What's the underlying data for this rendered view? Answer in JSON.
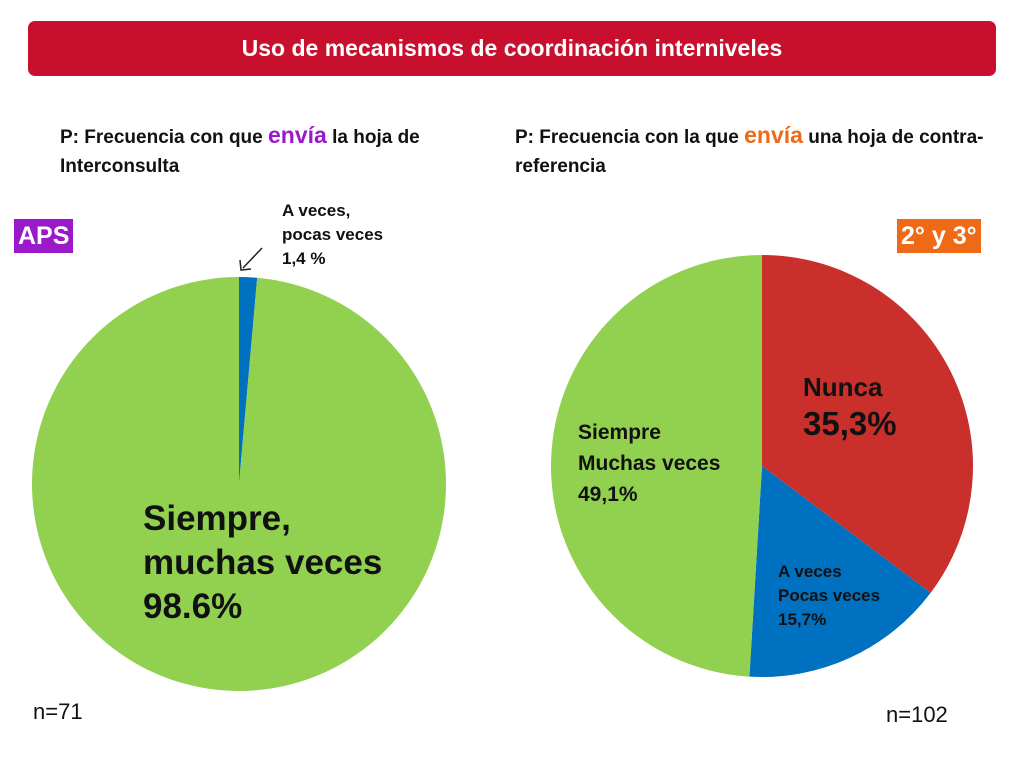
{
  "banner": {
    "title": "Uso de mecanismos de coordinación interniveles"
  },
  "left": {
    "q_prefix": "P: Frecuencia con que ",
    "q_verb": "envía",
    "q_suffix": " la hoja de Interconsulta",
    "tag": "APS",
    "n": "n=71"
  },
  "right": {
    "q_prefix": "P: Frecuencia con la que ",
    "q_verb": "envía",
    "q_suffix": " una hoja de contra-referencia",
    "tag": "2° y 3°",
    "n": "n=102"
  },
  "colors": {
    "banner": "#c8102e",
    "aps_tag": "#9a19c9",
    "tag_2y3": "#ef6a16",
    "verb_left": "#9a19c9",
    "verb_right": "#ef6a16",
    "green": "#92d050",
    "blue": "#0070c0",
    "red": "#c9302c"
  },
  "chart_data": [
    {
      "type": "pie",
      "title": "",
      "slices": [
        {
          "label": "A veces, pocas veces 1,4 %",
          "value": 1.4,
          "color": "#0070c0"
        },
        {
          "label": "Siempre, muchas veces 98.6%",
          "value": 98.6,
          "color": "#92d050"
        }
      ]
    },
    {
      "type": "pie",
      "title": "",
      "slices": [
        {
          "label": "Nunca 35,3%",
          "value": 35.3,
          "color": "#c9302c"
        },
        {
          "label": "A veces Pocas veces 15,7%",
          "value": 15.7,
          "color": "#0070c0"
        },
        {
          "label": "Siempre Muchas veces 49,1%",
          "value": 49.1,
          "color": "#92d050"
        }
      ]
    }
  ],
  "labels": {
    "left_small": [
      "A veces,",
      "pocas veces",
      "1,4 %"
    ],
    "left_big": [
      "Siempre,",
      "muchas veces",
      "98.6%"
    ],
    "right_nunca": [
      "Nunca",
      "35,3%"
    ],
    "right_siempre": [
      "Siempre",
      "Muchas veces",
      "49,1%"
    ],
    "right_aveces": [
      "A veces",
      "Pocas veces",
      "15,7%"
    ]
  }
}
